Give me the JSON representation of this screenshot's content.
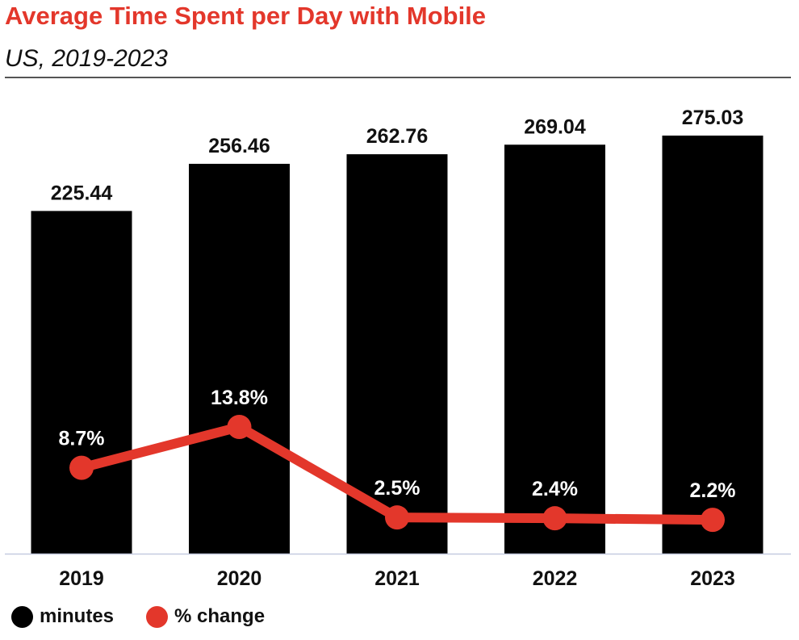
{
  "chart_data": {
    "type": "bar",
    "title": "Average Time Spent per Day with Mobile",
    "subtitle": "US, 2019-2023",
    "categories": [
      "2019",
      "2020",
      "2021",
      "2022",
      "2023"
    ],
    "series": [
      {
        "name": "minutes",
        "type": "bar",
        "values": [
          225.44,
          256.46,
          262.76,
          269.04,
          275.03
        ],
        "labels": [
          "225.44",
          "256.46",
          "262.76",
          "269.04",
          "275.03"
        ],
        "color": "#000000"
      },
      {
        "name": "% change",
        "type": "line",
        "values": [
          8.7,
          13.8,
          2.5,
          2.4,
          2.2
        ],
        "labels": [
          "8.7%",
          "13.8%",
          "2.5%",
          "2.4%",
          "2.2%"
        ],
        "color": "#e3372b"
      }
    ],
    "ylim_bars": [
      0,
      300
    ],
    "ylim_line": [
      0,
      34
    ],
    "grid": false,
    "legend_position": "bottom-left"
  },
  "colors": {
    "accent": "#e3372b",
    "bar": "#000000",
    "baseline": "#c5cbe0"
  }
}
